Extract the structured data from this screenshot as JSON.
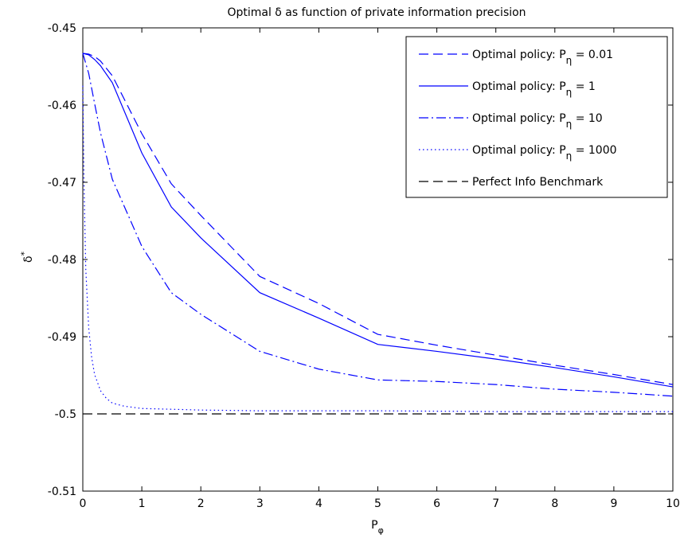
{
  "chart_data": {
    "type": "line",
    "title": "Optimal δ as function of private information precision",
    "xlabel_main": "P",
    "xlabel_sub": "φ",
    "ylabel_main": "δ",
    "ylabel_sup": "*",
    "xlim": [
      0,
      10
    ],
    "ylim": [
      -0.51,
      -0.45
    ],
    "x_ticks": [
      "0",
      "1",
      "2",
      "3",
      "4",
      "5",
      "6",
      "7",
      "8",
      "9",
      "10"
    ],
    "y_ticks": [
      "-0.45",
      "-0.46",
      "-0.47",
      "-0.48",
      "-0.49",
      "-0.5",
      "-0.51"
    ],
    "grid": false,
    "legend_position": "top-right",
    "series": [
      {
        "label_main": "Optimal policy: P",
        "label_sub": "η",
        "label_value": " = 0.01",
        "color": "#0000ff",
        "style": "dashed",
        "x": [
          0,
          0.1,
          0.2,
          0.3,
          0.5,
          1,
          1.5,
          2,
          3,
          4,
          5,
          6,
          7,
          8,
          9,
          10
        ],
        "y": [
          -0.4533,
          -0.4534,
          -0.4537,
          -0.4543,
          -0.4562,
          -0.4637,
          -0.4702,
          -0.4743,
          -0.4822,
          -0.4857,
          -0.4897,
          -0.4911,
          -0.4924,
          -0.4937,
          -0.4949,
          -0.4962
        ]
      },
      {
        "label_main": "Optimal policy: P",
        "label_sub": "η",
        "label_value": " = 1",
        "color": "#0000ff",
        "style": "solid",
        "x": [
          0,
          0.1,
          0.2,
          0.3,
          0.5,
          1,
          1.5,
          2,
          3,
          4,
          5,
          6,
          7,
          8,
          9,
          10
        ],
        "y": [
          -0.4533,
          -0.4535,
          -0.4541,
          -0.4549,
          -0.4571,
          -0.4662,
          -0.4732,
          -0.4772,
          -0.4843,
          -0.4876,
          -0.491,
          -0.4919,
          -0.4929,
          -0.494,
          -0.4952,
          -0.4965
        ]
      },
      {
        "label_main": "Optimal policy: P",
        "label_sub": "η",
        "label_value": " = 10",
        "color": "#0000ff",
        "style": "dashdot",
        "x": [
          0,
          0.1,
          0.2,
          0.3,
          0.5,
          1,
          1.5,
          2,
          3,
          4,
          5,
          6,
          7,
          8,
          9,
          10
        ],
        "y": [
          -0.4533,
          -0.4559,
          -0.4598,
          -0.4636,
          -0.4696,
          -0.4783,
          -0.4843,
          -0.4871,
          -0.4919,
          -0.4942,
          -0.4956,
          -0.4958,
          -0.4962,
          -0.4968,
          -0.4972,
          -0.4977
        ]
      },
      {
        "label_main": "Optimal policy: P",
        "label_sub": "η",
        "label_value": " = 1000",
        "color": "#0000ff",
        "style": "dotted",
        "x": [
          0,
          0.02,
          0.05,
          0.1,
          0.15,
          0.2,
          0.3,
          0.4,
          0.5,
          0.7,
          1,
          1.5,
          2,
          3,
          5,
          7,
          10
        ],
        "y": [
          -0.4575,
          -0.4702,
          -0.4812,
          -0.4889,
          -0.4927,
          -0.4949,
          -0.497,
          -0.498,
          -0.4986,
          -0.499,
          -0.4993,
          -0.4994,
          -0.4995,
          -0.4996,
          -0.4996,
          -0.4997,
          -0.4997
        ]
      },
      {
        "label_main": "Perfect Info Benchmark",
        "label_sub": "",
        "label_value": "",
        "color": "#000000",
        "style": "dashed",
        "x": [
          0,
          10
        ],
        "y": [
          -0.5,
          -0.5
        ]
      }
    ]
  }
}
